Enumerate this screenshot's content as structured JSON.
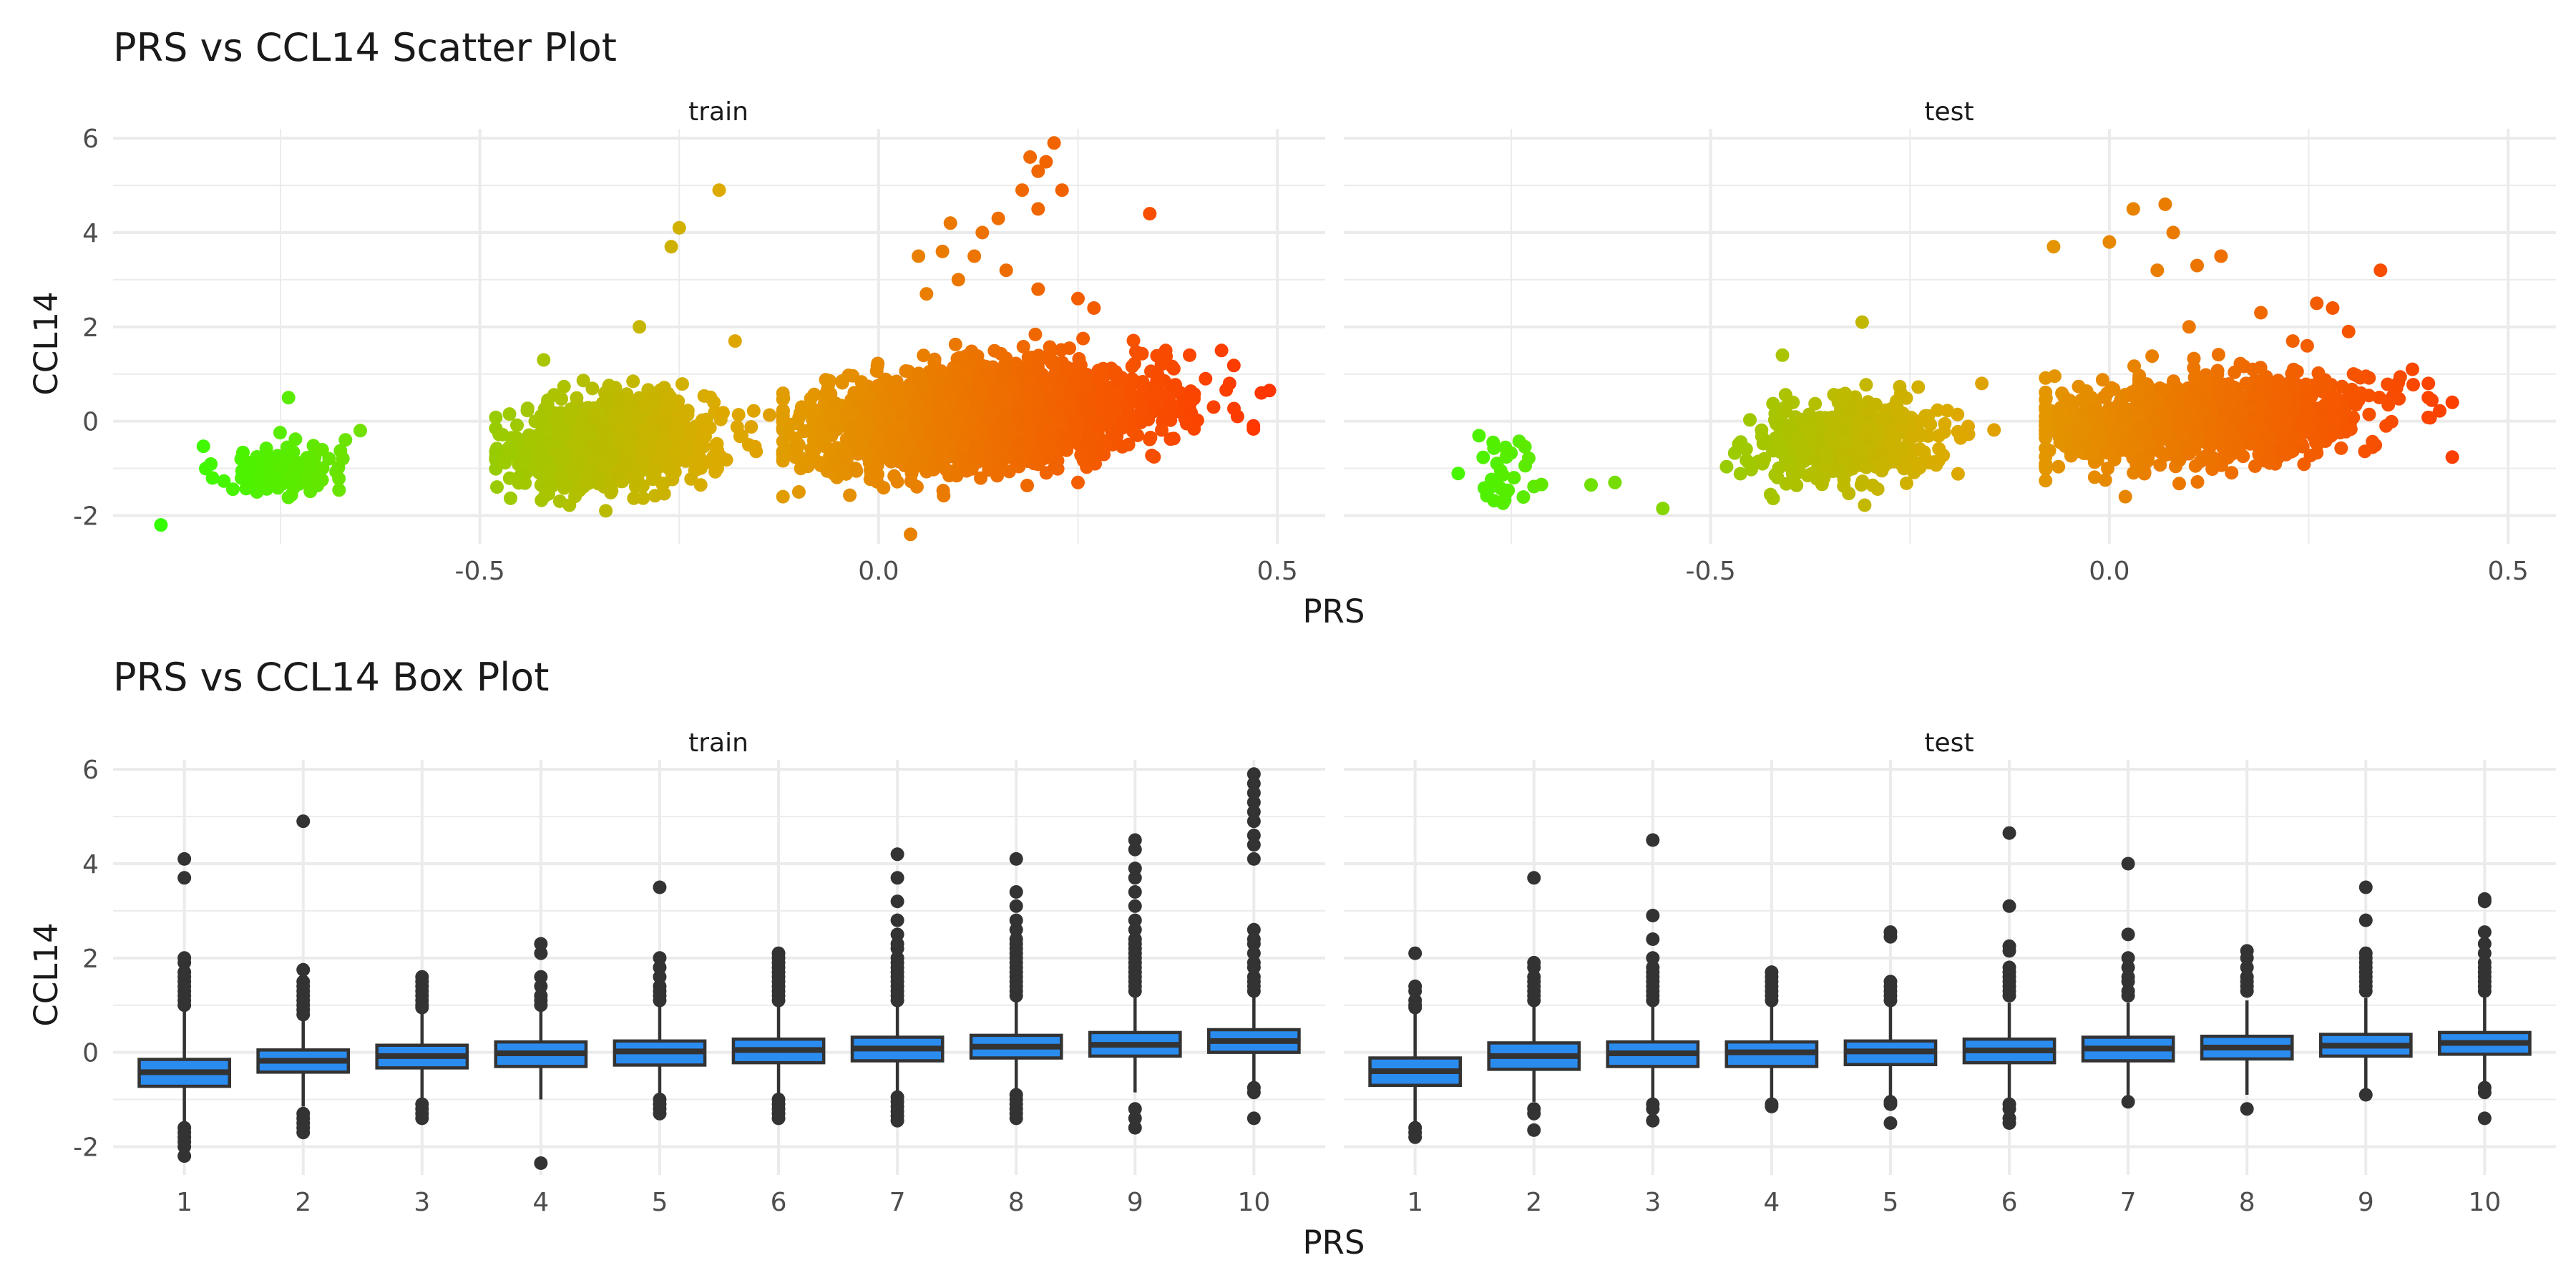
{
  "chart_data": [
    {
      "type": "scatter",
      "title": "PRS vs CCL14 Scatter Plot",
      "xlabel": "PRS",
      "ylabel": "CCL14",
      "xlim": [
        -0.96,
        0.56
      ],
      "ylim": [
        -2.6,
        6.2
      ],
      "x_ticks": [
        -0.5,
        0.0,
        0.5
      ],
      "y_ticks": [
        -2,
        0,
        2,
        4,
        6
      ],
      "x_tick_labels": [
        "-0.5",
        "0.0",
        "0.5"
      ],
      "y_tick_labels": [
        "-2",
        "0",
        "2",
        "4",
        "6"
      ],
      "grid": true,
      "legend": "none",
      "color_scale": {
        "low": "#33ff00",
        "mid": "#ddaa00",
        "high": "#ff3300",
        "domain": [
          -0.9,
          0.5
        ]
      },
      "facets": [
        {
          "label": "train",
          "clusters": [
            {
              "x_range": [
                -0.88,
                -0.64
              ],
              "x_mean": -0.75,
              "x_sd": 0.04,
              "y_mean": -1.0,
              "y_sd": 0.3,
              "n": 110
            },
            {
              "x_range": [
                -0.48,
                -0.12
              ],
              "x_mean": -0.33,
              "x_sd": 0.06,
              "y_mean": -0.45,
              "y_sd": 0.45,
              "n": 1100
            },
            {
              "x_range": [
                -0.12,
                0.47
              ],
              "x_mean": 0.13,
              "x_sd": 0.1,
              "y_mean": 0.1,
              "y_sd": 0.5,
              "n": 2600
            }
          ],
          "outliers": [
            {
              "x": -0.9,
              "y": -2.2
            },
            {
              "x": -0.74,
              "y": 0.5
            },
            {
              "x": -0.65,
              "y": -0.2
            },
            {
              "x": -0.2,
              "y": 4.9
            },
            {
              "x": -0.25,
              "y": 4.1
            },
            {
              "x": -0.26,
              "y": 3.7
            },
            {
              "x": -0.42,
              "y": 1.3
            },
            {
              "x": -0.3,
              "y": 2.0
            },
            {
              "x": -0.18,
              "y": 1.7
            },
            {
              "x": 0.04,
              "y": -2.4
            },
            {
              "x": 0.22,
              "y": 5.9
            },
            {
              "x": 0.19,
              "y": 5.6
            },
            {
              "x": 0.21,
              "y": 5.5
            },
            {
              "x": 0.2,
              "y": 5.3
            },
            {
              "x": 0.23,
              "y": 4.9
            },
            {
              "x": 0.18,
              "y": 4.9
            },
            {
              "x": 0.2,
              "y": 4.5
            },
            {
              "x": 0.15,
              "y": 4.3
            },
            {
              "x": 0.34,
              "y": 4.4
            },
            {
              "x": 0.09,
              "y": 4.2
            },
            {
              "x": 0.13,
              "y": 4.0
            },
            {
              "x": 0.08,
              "y": 3.6
            },
            {
              "x": 0.12,
              "y": 3.5
            },
            {
              "x": 0.05,
              "y": 3.5
            },
            {
              "x": 0.16,
              "y": 3.2
            },
            {
              "x": 0.1,
              "y": 3.0
            },
            {
              "x": 0.2,
              "y": 2.8
            },
            {
              "x": 0.25,
              "y": 2.6
            },
            {
              "x": 0.27,
              "y": 2.4
            },
            {
              "x": 0.06,
              "y": 2.7
            },
            {
              "x": 0.36,
              "y": 1.5
            },
            {
              "x": 0.39,
              "y": 1.4
            },
            {
              "x": 0.43,
              "y": 1.5
            },
            {
              "x": 0.41,
              "y": 0.9
            },
            {
              "x": 0.44,
              "y": 0.8
            },
            {
              "x": 0.48,
              "y": 0.6
            },
            {
              "x": 0.49,
              "y": 0.65
            },
            {
              "x": 0.47,
              "y": -0.1
            },
            {
              "x": 0.42,
              "y": 0.3
            },
            {
              "x": 0.45,
              "y": 0.1
            },
            {
              "x": -0.1,
              "y": -1.5
            },
            {
              "x": 0.25,
              "y": -1.3
            }
          ]
        },
        {
          "label": "test",
          "clusters": [
            {
              "x_range": [
                -0.82,
                -0.67
              ],
              "x_mean": -0.76,
              "x_sd": 0.03,
              "y_mean": -1.0,
              "y_sd": 0.4,
              "n": 32
            },
            {
              "x_range": [
                -0.48,
                -0.12
              ],
              "x_mean": -0.33,
              "x_sd": 0.06,
              "y_mean": -0.45,
              "y_sd": 0.4,
              "n": 480
            },
            {
              "x_range": [
                -0.08,
                0.43
              ],
              "x_mean": 0.12,
              "x_sd": 0.1,
              "y_mean": 0.05,
              "y_sd": 0.45,
              "n": 1100
            }
          ],
          "outliers": [
            {
              "x": -0.56,
              "y": -1.85
            },
            {
              "x": -0.62,
              "y": -1.3
            },
            {
              "x": -0.65,
              "y": -1.35
            },
            {
              "x": -0.31,
              "y": 2.1
            },
            {
              "x": -0.41,
              "y": 1.4
            },
            {
              "x": -0.16,
              "y": 0.8
            },
            {
              "x": 0.07,
              "y": 4.6
            },
            {
              "x": 0.03,
              "y": 4.5
            },
            {
              "x": 0.0,
              "y": 3.8
            },
            {
              "x": -0.07,
              "y": 3.7
            },
            {
              "x": 0.14,
              "y": 3.5
            },
            {
              "x": 0.11,
              "y": 3.3
            },
            {
              "x": 0.06,
              "y": 3.2
            },
            {
              "x": 0.08,
              "y": 4.0
            },
            {
              "x": 0.34,
              "y": 3.2
            },
            {
              "x": 0.26,
              "y": 2.5
            },
            {
              "x": 0.28,
              "y": 2.4
            },
            {
              "x": 0.19,
              "y": 2.3
            },
            {
              "x": 0.23,
              "y": 1.7
            },
            {
              "x": 0.3,
              "y": 1.9
            },
            {
              "x": 0.38,
              "y": 1.1
            },
            {
              "x": 0.4,
              "y": 0.8
            },
            {
              "x": 0.43,
              "y": 0.4
            },
            {
              "x": 0.36,
              "y": 0.7
            },
            {
              "x": 0.4,
              "y": 0.5
            },
            {
              "x": 0.1,
              "y": 2.0
            },
            {
              "x": 0.02,
              "y": -1.6
            }
          ]
        }
      ]
    },
    {
      "type": "box",
      "title": "PRS vs CCL14 Box Plot",
      "xlabel": "PRS",
      "ylabel": "CCL14",
      "ylim": [
        -2.6,
        6.2
      ],
      "y_ticks": [
        -2,
        0,
        2,
        4,
        6
      ],
      "y_tick_labels": [
        "-2",
        "0",
        "2",
        "4",
        "6"
      ],
      "categories": [
        "1",
        "2",
        "3",
        "4",
        "5",
        "6",
        "7",
        "8",
        "9",
        "10"
      ],
      "grid": true,
      "fill": "#2b8cf0",
      "facets": [
        {
          "label": "train",
          "boxes": [
            {
              "q1": -0.72,
              "median": -0.42,
              "q3": -0.15,
              "lower": -1.5,
              "upper": 0.9,
              "outliers": [
                4.1,
                3.7,
                2.0,
                1.9,
                1.7,
                1.6,
                1.5,
                1.4,
                1.3,
                1.2,
                1.1,
                1.0,
                -1.6,
                -1.7,
                -1.8,
                -1.9,
                -2.0,
                -2.2
              ]
            },
            {
              "q1": -0.42,
              "median": -0.18,
              "q3": 0.05,
              "lower": -1.15,
              "upper": 0.75,
              "outliers": [
                4.9,
                1.75,
                1.5,
                1.4,
                1.3,
                1.2,
                1.1,
                1.0,
                0.9,
                0.8,
                -1.3,
                -1.4,
                -1.5,
                -1.6,
                -1.7
              ]
            },
            {
              "q1": -0.33,
              "median": -0.08,
              "q3": 0.15,
              "lower": -1.0,
              "upper": 0.85,
              "outliers": [
                1.6,
                1.5,
                1.4,
                1.3,
                1.2,
                1.1,
                1.0,
                0.95,
                -1.1,
                -1.2,
                -1.3,
                -1.4
              ]
            },
            {
              "q1": -0.3,
              "median": -0.02,
              "q3": 0.22,
              "lower": -1.0,
              "upper": 0.95,
              "outliers": [
                2.3,
                2.1,
                1.6,
                1.4,
                1.2,
                1.1,
                1.0,
                -2.35
              ]
            },
            {
              "q1": -0.27,
              "median": 0.02,
              "q3": 0.24,
              "lower": -0.95,
              "upper": 1.0,
              "outliers": [
                3.5,
                2.0,
                1.8,
                1.6,
                1.4,
                1.3,
                1.2,
                1.1,
                -1.0,
                -1.1,
                -1.2,
                -1.3
              ]
            },
            {
              "q1": -0.22,
              "median": 0.05,
              "q3": 0.28,
              "lower": -0.95,
              "upper": 1.05,
              "outliers": [
                2.1,
                2.0,
                1.9,
                1.8,
                1.7,
                1.6,
                1.5,
                1.4,
                1.3,
                1.2,
                1.1,
                -1.0,
                -1.1,
                -1.2,
                -1.3,
                -1.4
              ]
            },
            {
              "q1": -0.18,
              "median": 0.08,
              "q3": 0.32,
              "lower": -0.9,
              "upper": 1.05,
              "outliers": [
                4.2,
                3.7,
                3.2,
                2.8,
                2.5,
                2.3,
                2.2,
                2.0,
                1.9,
                1.8,
                1.7,
                1.6,
                1.5,
                1.4,
                1.3,
                1.2,
                1.1,
                -0.95,
                -1.05,
                -1.15,
                -1.25,
                -1.35,
                -1.45
              ]
            },
            {
              "q1": -0.12,
              "median": 0.12,
              "q3": 0.36,
              "lower": -0.85,
              "upper": 1.1,
              "outliers": [
                4.1,
                3.4,
                3.1,
                2.8,
                2.6,
                2.4,
                2.3,
                2.2,
                2.1,
                2.0,
                1.9,
                1.8,
                1.7,
                1.6,
                1.5,
                1.4,
                1.3,
                1.2,
                -0.9,
                -1.0,
                -1.1,
                -1.2,
                -1.3,
                -1.4
              ]
            },
            {
              "q1": -0.08,
              "median": 0.16,
              "q3": 0.42,
              "lower": -0.85,
              "upper": 1.2,
              "outliers": [
                4.5,
                4.3,
                3.9,
                3.7,
                3.4,
                3.1,
                2.8,
                2.6,
                2.4,
                2.3,
                2.2,
                2.1,
                2.0,
                1.9,
                1.8,
                1.7,
                1.6,
                1.5,
                1.4,
                1.3,
                -1.2,
                -1.4,
                -1.6
              ]
            },
            {
              "q1": 0.0,
              "median": 0.24,
              "q3": 0.48,
              "lower": -0.7,
              "upper": 1.25,
              "outliers": [
                5.9,
                5.7,
                5.5,
                5.3,
                5.1,
                4.9,
                4.6,
                4.4,
                4.1,
                2.6,
                2.4,
                2.3,
                2.1,
                1.9,
                1.8,
                1.6,
                1.5,
                1.4,
                1.3,
                -0.75,
                -0.85,
                -1.4
              ]
            }
          ]
        },
        {
          "label": "test",
          "boxes": [
            {
              "q1": -0.7,
              "median": -0.4,
              "q3": -0.12,
              "lower": -1.5,
              "upper": 0.85,
              "outliers": [
                2.1,
                1.4,
                1.3,
                1.1,
                1.0,
                0.95,
                -1.6,
                -1.7,
                -1.8
              ]
            },
            {
              "q1": -0.36,
              "median": -0.08,
              "q3": 0.2,
              "lower": -1.05,
              "upper": 1.0,
              "outliers": [
                3.7,
                1.9,
                1.8,
                1.6,
                1.5,
                1.4,
                1.3,
                1.2,
                1.1,
                -1.2,
                -1.3,
                -1.65
              ]
            },
            {
              "q1": -0.3,
              "median": -0.02,
              "q3": 0.22,
              "lower": -1.0,
              "upper": 1.0,
              "outliers": [
                4.5,
                2.9,
                2.4,
                2.0,
                1.8,
                1.7,
                1.6,
                1.5,
                1.4,
                1.3,
                1.2,
                1.1,
                -1.1,
                -1.2,
                -1.45
              ]
            },
            {
              "q1": -0.3,
              "median": 0.0,
              "q3": 0.22,
              "lower": -1.0,
              "upper": 1.0,
              "outliers": [
                1.7,
                1.6,
                1.5,
                1.4,
                1.3,
                1.2,
                1.1,
                -1.1,
                -1.15
              ]
            },
            {
              "q1": -0.26,
              "median": 0.02,
              "q3": 0.24,
              "lower": -1.0,
              "upper": 1.0,
              "outliers": [
                2.55,
                2.45,
                1.5,
                1.4,
                1.3,
                1.2,
                1.1,
                -1.05,
                -1.1,
                -1.5
              ]
            },
            {
              "q1": -0.22,
              "median": 0.04,
              "q3": 0.28,
              "lower": -1.0,
              "upper": 1.05,
              "outliers": [
                4.65,
                3.1,
                2.25,
                2.15,
                1.8,
                1.7,
                1.6,
                1.5,
                1.4,
                1.3,
                1.2,
                -1.1,
                -1.2,
                -1.4,
                -1.5
              ]
            },
            {
              "q1": -0.18,
              "median": 0.08,
              "q3": 0.32,
              "lower": -0.95,
              "upper": 1.05,
              "outliers": [
                4.0,
                2.5,
                2.0,
                1.8,
                1.6,
                1.5,
                1.3,
                1.2,
                -1.05
              ]
            },
            {
              "q1": -0.14,
              "median": 0.1,
              "q3": 0.34,
              "lower": -0.9,
              "upper": 1.1,
              "outliers": [
                2.15,
                2.0,
                1.8,
                1.6,
                1.5,
                1.4,
                1.3,
                -1.2
              ]
            },
            {
              "q1": -0.08,
              "median": 0.14,
              "q3": 0.38,
              "lower": -0.85,
              "upper": 1.15,
              "outliers": [
                3.5,
                2.8,
                2.1,
                2.0,
                1.9,
                1.8,
                1.7,
                1.6,
                1.5,
                1.4,
                1.3,
                -0.9
              ]
            },
            {
              "q1": -0.04,
              "median": 0.2,
              "q3": 0.42,
              "lower": -0.75,
              "upper": 1.2,
              "outliers": [
                3.25,
                3.2,
                2.55,
                2.3,
                2.1,
                1.9,
                1.8,
                1.7,
                1.6,
                1.5,
                1.4,
                1.3,
                -0.75,
                -0.85,
                -1.4
              ]
            }
          ]
        }
      ]
    }
  ]
}
